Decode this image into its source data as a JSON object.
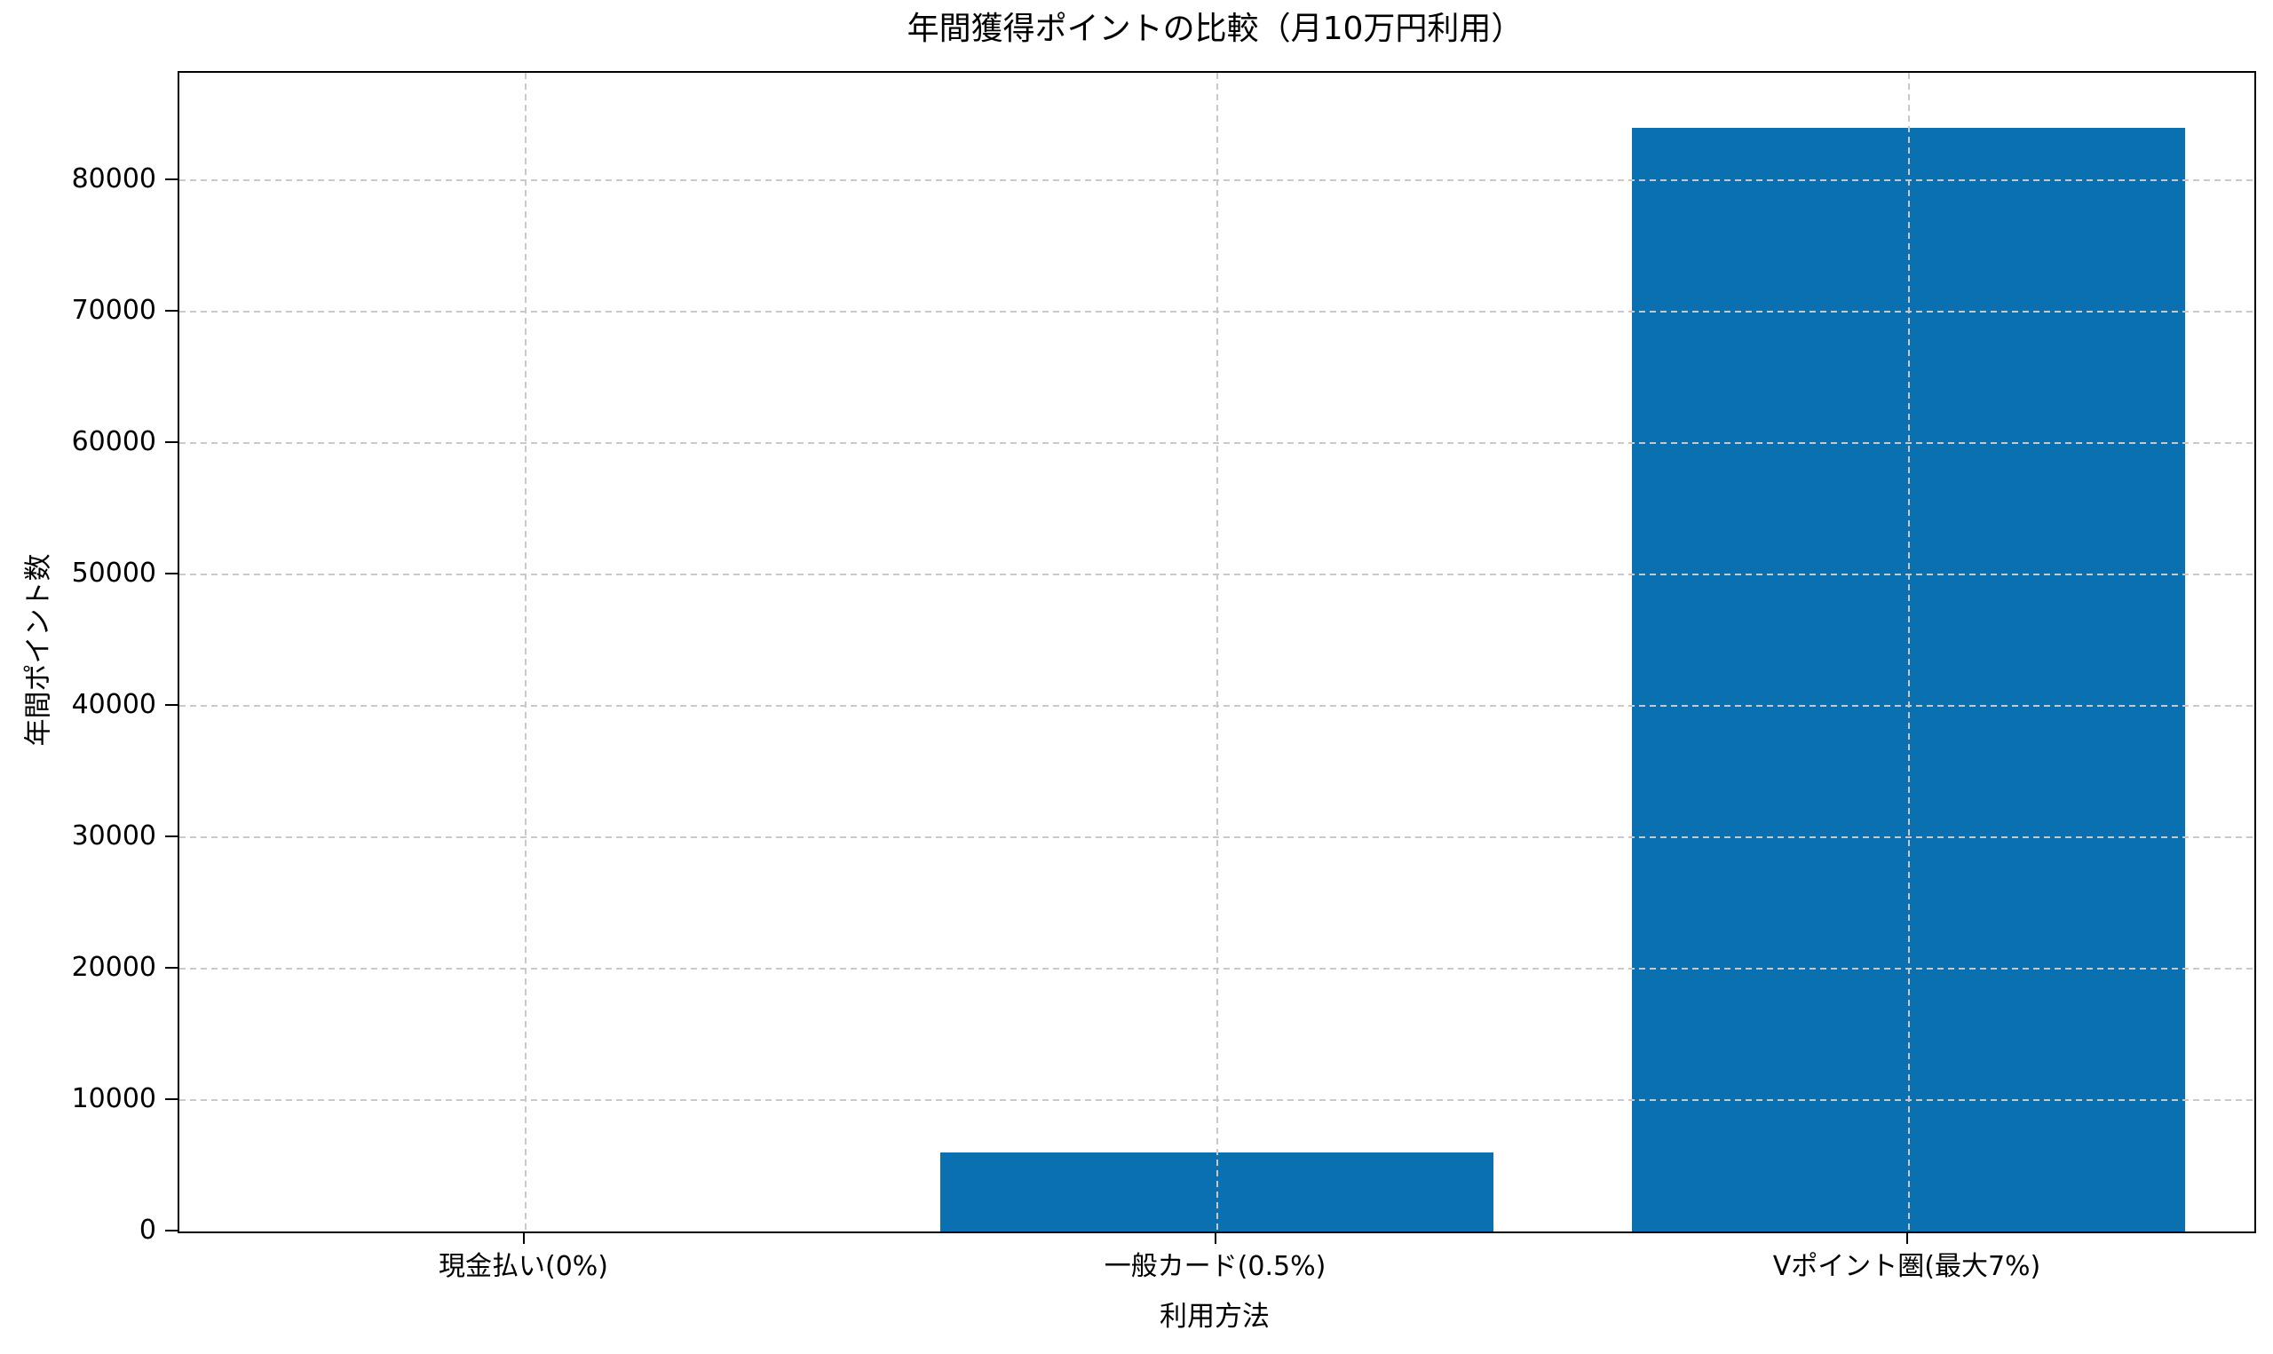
{
  "figure": {
    "background": "#ffffff"
  },
  "chart_data": {
    "type": "bar",
    "title": "年間獲得ポイントの比較（月10万円利用）",
    "xlabel": "利用方法",
    "ylabel": "年間ポイント数",
    "categories": [
      "現金払い(0%)",
      "一般カード(0.5%)",
      "Vポイント圏(最大7%)"
    ],
    "values": [
      0,
      6000,
      84000
    ],
    "yticks": [
      0,
      10000,
      20000,
      30000,
      40000,
      50000,
      60000,
      70000,
      80000
    ],
    "ylim": [
      0,
      88200
    ],
    "bar_width_fraction": 0.8,
    "bar_color": "#0b70b0",
    "grid": {
      "visible": true,
      "style": "dashed",
      "color": "#c9c9c9",
      "on_top_of_bars": true
    },
    "axis_color": "#000000",
    "text_color": "#000000",
    "legend": null
  }
}
